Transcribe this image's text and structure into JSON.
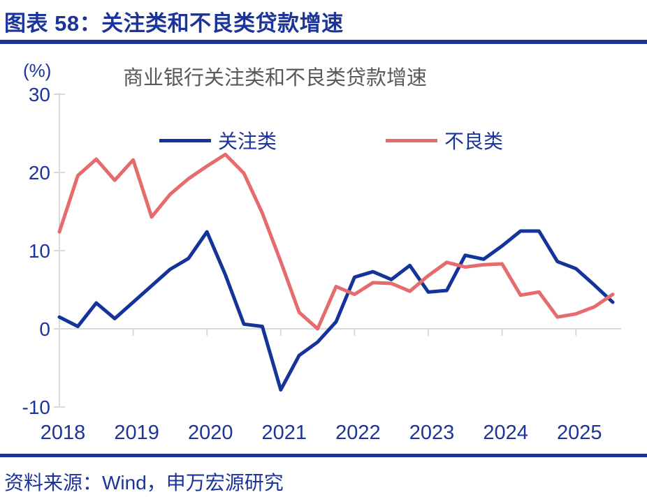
{
  "page": {
    "header_title": "图表 58：关注类和不良类贷款增速",
    "source_note": "资料来源：Wind，申万宏源研究"
  },
  "chart_data": {
    "type": "line",
    "title": "商业银行关注类和不良类贷款增速",
    "unit_label": "(%)",
    "legend_position": "top-inside",
    "grid": "zero-baseline-only",
    "ylim": [
      -10,
      30
    ],
    "y_ticks": [
      30,
      20,
      10,
      0,
      -10
    ],
    "x_tick_labels": [
      "2018",
      "2019",
      "2020",
      "2021",
      "2022",
      "2023",
      "2024",
      "2025"
    ],
    "x": [
      "2018Q1",
      "2018Q2",
      "2018Q3",
      "2018Q4",
      "2019Q1",
      "2019Q2",
      "2019Q3",
      "2019Q4",
      "2020Q1",
      "2020Q2",
      "2020Q3",
      "2020Q4",
      "2021Q1",
      "2021Q2",
      "2021Q3",
      "2021Q4",
      "2022Q1",
      "2022Q2",
      "2022Q3",
      "2022Q4",
      "2023Q1",
      "2023Q2",
      "2023Q3",
      "2023Q4",
      "2024Q1",
      "2024Q2",
      "2024Q3",
      "2024Q4",
      "2025Q1",
      "2025Q2",
      "2025Q3"
    ],
    "series": [
      {
        "name": "关注类",
        "color": "#153499",
        "values": [
          1.5,
          0.3,
          3.3,
          1.3,
          3.4,
          5.5,
          7.6,
          9.0,
          12.4,
          6.9,
          0.6,
          0.3,
          -7.8,
          -3.4,
          -1.7,
          0.9,
          6.6,
          7.3,
          6.3,
          8.1,
          4.7,
          4.9,
          9.4,
          8.9,
          10.6,
          12.5,
          12.5,
          8.6,
          7.7,
          5.6,
          3.4
        ]
      },
      {
        "name": "不良类",
        "color": "#E56B6D",
        "values": [
          12.4,
          19.6,
          21.7,
          19.0,
          21.6,
          14.3,
          17.2,
          19.2,
          20.8,
          22.3,
          19.9,
          14.8,
          8.6,
          2.1,
          0.0,
          5.4,
          4.4,
          5.9,
          5.8,
          4.8,
          6.8,
          8.5,
          7.9,
          8.2,
          8.3,
          4.3,
          4.7,
          1.5,
          1.9,
          2.8,
          4.4
        ]
      }
    ]
  },
  "colors": {
    "accent_navy": "#1C3499",
    "title_gray": "#595959",
    "axis_gray": "#D9D9D9",
    "series_blue": "#153499",
    "series_red": "#E56B6D"
  }
}
